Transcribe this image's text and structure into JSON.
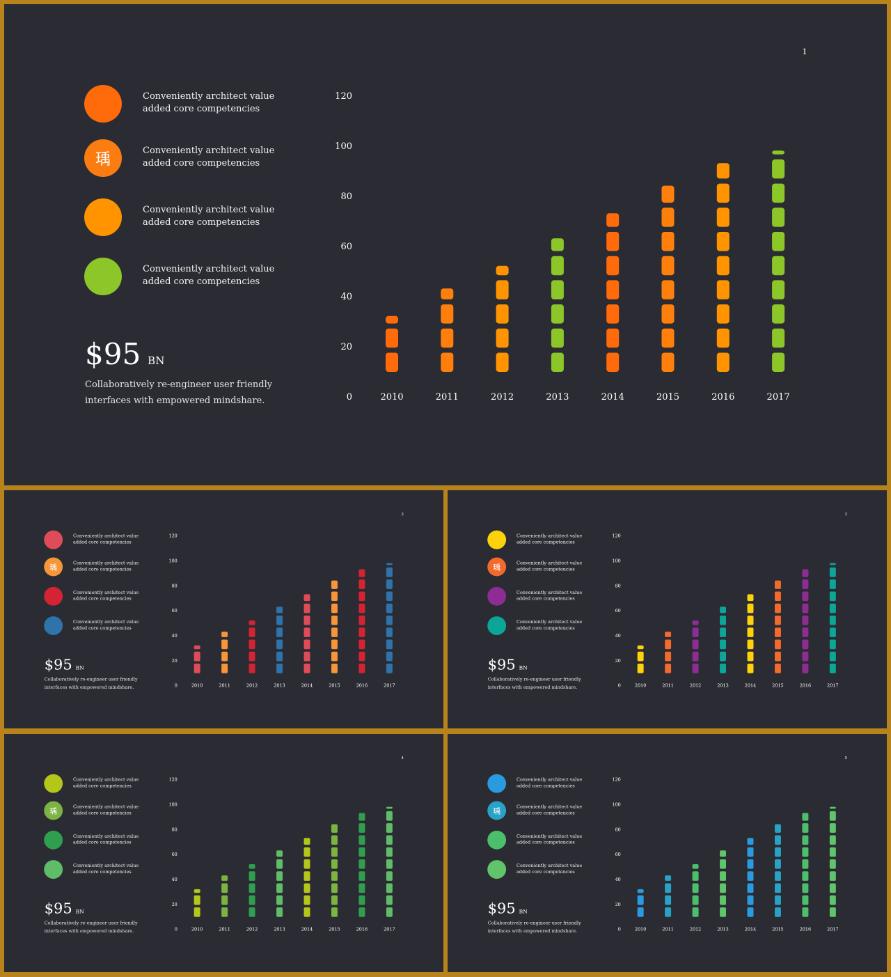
{
  "shared": {
    "legend_text": "Conveniently architect value\nadded core competencies",
    "headline_value": "$95",
    "headline_unit": "BN",
    "description": "Collaboratively re-engineer user friendly interfaces with empowered mindshare.",
    "legend_icon_glyph": "瑀"
  },
  "chart_data": [
    {
      "type": "bar",
      "page": "1",
      "categories": [
        "2010",
        "2011",
        "2012",
        "2013",
        "2014",
        "2015",
        "2016",
        "2017"
      ],
      "values": [
        32,
        43,
        52,
        63,
        73,
        84,
        93,
        98
      ],
      "y_ticks": [
        "0",
        "20",
        "40",
        "60",
        "80",
        "100",
        "120"
      ],
      "ylim": [
        0,
        120
      ],
      "legend_colors": [
        "#ff6a0a",
        "#fb7d12",
        "#ff9400",
        "#8dc628"
      ],
      "bar_colors": [
        "#ff6a0a",
        "#ff7f0c",
        "#ff9400",
        "#8dc628",
        "#ff6a0a",
        "#ff7f0c",
        "#ff9400",
        "#8dc628"
      ]
    },
    {
      "type": "bar",
      "page": "2",
      "categories": [
        "2010",
        "2011",
        "2012",
        "2013",
        "2014",
        "2015",
        "2016",
        "2017"
      ],
      "values": [
        32,
        43,
        52,
        63,
        73,
        84,
        93,
        98
      ],
      "y_ticks": [
        "0",
        "20",
        "40",
        "60",
        "80",
        "100",
        "120"
      ],
      "ylim": [
        0,
        120
      ],
      "legend_colors": [
        "#e04b5a",
        "#f7953a",
        "#d42332",
        "#2f73ab"
      ],
      "bar_colors": [
        "#e04b5a",
        "#f7953a",
        "#d42332",
        "#2f73ab",
        "#e04b5a",
        "#f7953a",
        "#d42332",
        "#2f73ab"
      ]
    },
    {
      "type": "bar",
      "page": "3",
      "categories": [
        "2010",
        "2011",
        "2012",
        "2013",
        "2014",
        "2015",
        "2016",
        "2017"
      ],
      "values": [
        32,
        43,
        52,
        63,
        73,
        84,
        93,
        98
      ],
      "y_ticks": [
        "0",
        "20",
        "40",
        "60",
        "80",
        "100",
        "120"
      ],
      "ylim": [
        0,
        120
      ],
      "legend_colors": [
        "#fdd20b",
        "#f26a2c",
        "#8d2d94",
        "#0ba698"
      ],
      "bar_colors": [
        "#fdd20b",
        "#f26a2c",
        "#8d2d94",
        "#0ba698",
        "#fdd20b",
        "#f26a2c",
        "#8d2d94",
        "#0ba698"
      ]
    },
    {
      "type": "bar",
      "page": "4",
      "categories": [
        "2010",
        "2011",
        "2012",
        "2013",
        "2014",
        "2015",
        "2016",
        "2017"
      ],
      "values": [
        32,
        43,
        52,
        63,
        73,
        84,
        93,
        98
      ],
      "y_ticks": [
        "0",
        "20",
        "40",
        "60",
        "80",
        "100",
        "120"
      ],
      "ylim": [
        0,
        120
      ],
      "legend_colors": [
        "#b4c61a",
        "#7cb342",
        "#2f9e4f",
        "#5fbd6a"
      ],
      "bar_colors": [
        "#b4c61a",
        "#7cb342",
        "#2f9e4f",
        "#5fbd6a",
        "#b4c61a",
        "#7cb342",
        "#2f9e4f",
        "#5fbd6a"
      ]
    },
    {
      "type": "bar",
      "page": "5",
      "categories": [
        "2010",
        "2011",
        "2012",
        "2013",
        "2014",
        "2015",
        "2016",
        "2017"
      ],
      "values": [
        32,
        43,
        52,
        63,
        73,
        84,
        93,
        98
      ],
      "y_ticks": [
        "0",
        "20",
        "40",
        "60",
        "80",
        "100",
        "120"
      ],
      "ylim": [
        0,
        120
      ],
      "legend_colors": [
        "#2a9be0",
        "#29a2c8",
        "#4dbf6c",
        "#5fc46a"
      ],
      "bar_colors": [
        "#2a9be0",
        "#29a2c8",
        "#4dbf6c",
        "#5fc46a",
        "#2a9be0",
        "#29a2c8",
        "#4dbf6c",
        "#5fc46a"
      ]
    }
  ]
}
